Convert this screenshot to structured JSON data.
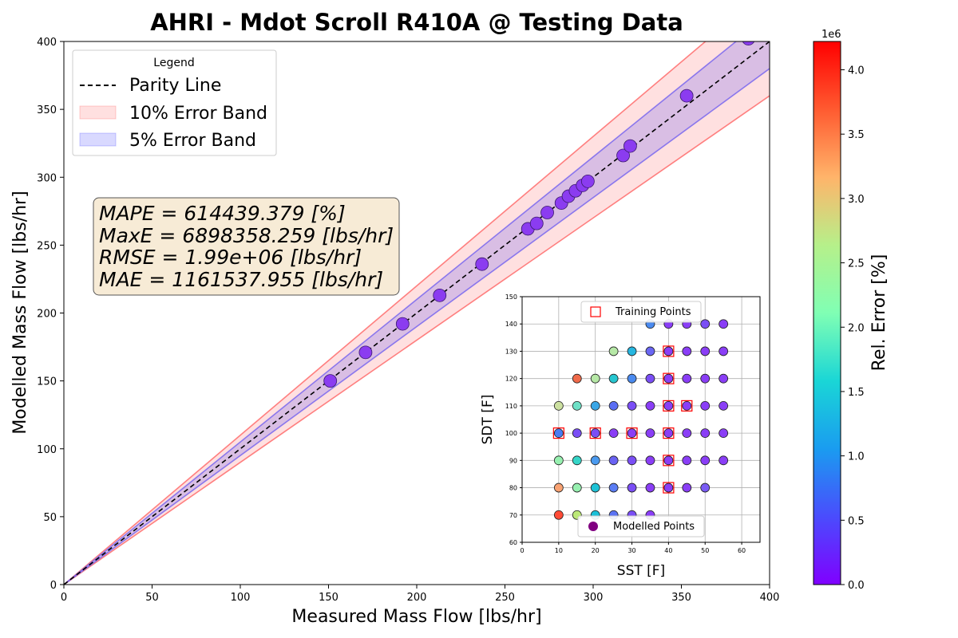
{
  "chart_data": [
    {
      "type": "scatter",
      "title": "AHRI - Mdot Scroll R410A @ Testing Data",
      "xlabel": "Measured Mass Flow [lbs/hr]",
      "ylabel": "Modelled Mass Flow [lbs/hr]",
      "xlim": [
        0,
        400
      ],
      "ylim": [
        0,
        400
      ],
      "xticks": [
        0,
        50,
        100,
        150,
        200,
        250,
        300,
        350,
        400
      ],
      "yticks": [
        0,
        50,
        100,
        150,
        200,
        250,
        300,
        350,
        400
      ],
      "grid": false,
      "legend": {
        "title": "Legend",
        "position": "top-left",
        "entries": [
          "Parity Line",
          "10% Error Band",
          "5% Error Band"
        ]
      },
      "band_colors": {
        "ten": "#ff0000",
        "five": "#0000ff"
      },
      "stats": [
        "MAPE = 614439.379 [%]",
        "MaxE = 6898358.259 [lbs/hr]",
        "RMSE = 1.99e+06 [lbs/hr]",
        "MAE = 1161537.955 [lbs/hr]"
      ],
      "points": [
        [
          151,
          150
        ],
        [
          171,
          171
        ],
        [
          192,
          192
        ],
        [
          213,
          213
        ],
        [
          237,
          236
        ],
        [
          263,
          262
        ],
        [
          268,
          266
        ],
        [
          274,
          274
        ],
        [
          282,
          281
        ],
        [
          286,
          286
        ],
        [
          290,
          290
        ],
        [
          294,
          294
        ],
        [
          297,
          297
        ],
        [
          317,
          316
        ],
        [
          321,
          323
        ],
        [
          353,
          360
        ],
        [
          388,
          402
        ]
      ],
      "point_color": "#8b3cf0"
    },
    {
      "type": "scatter",
      "xlabel": "SST [F]",
      "ylabel": "SDT [F]",
      "xlim": [
        0,
        65
      ],
      "ylim": [
        60,
        150
      ],
      "xticks": [
        0,
        10,
        20,
        30,
        40,
        50,
        60
      ],
      "yticks": [
        60,
        70,
        80,
        90,
        100,
        110,
        120,
        130,
        140,
        150
      ],
      "grid": true,
      "legend_top": "Training Points",
      "legend_bottom": "Modelled Points",
      "training_color": "#ff0000",
      "modelled_color": "#800080",
      "modelled_points": [
        [
          10,
          70,
          "#ff4b36"
        ],
        [
          15,
          70,
          "#bce878"
        ],
        [
          20,
          70,
          "#18c0d8"
        ],
        [
          25,
          70,
          "#5a72f3"
        ],
        [
          30,
          70,
          "#7a4ef5"
        ],
        [
          35,
          70,
          "#8a3ef6"
        ],
        [
          10,
          80,
          "#f9a272"
        ],
        [
          15,
          80,
          "#97f0b0"
        ],
        [
          20,
          80,
          "#1ec2d6"
        ],
        [
          25,
          80,
          "#5a7cf3"
        ],
        [
          30,
          80,
          "#7a4ef5"
        ],
        [
          35,
          80,
          "#8a3ef6"
        ],
        [
          40,
          80,
          "#8a3ef6"
        ],
        [
          45,
          80,
          "#8a3ef6"
        ],
        [
          50,
          80,
          "#7a5cf5"
        ],
        [
          10,
          90,
          "#97f0b0"
        ],
        [
          15,
          90,
          "#36d6c8"
        ],
        [
          20,
          90,
          "#4a9aef"
        ],
        [
          25,
          90,
          "#6a62f3"
        ],
        [
          30,
          90,
          "#7a4ef5"
        ],
        [
          35,
          90,
          "#8a3ef6"
        ],
        [
          40,
          90,
          "#8a3ef6"
        ],
        [
          45,
          90,
          "#8a3ef6"
        ],
        [
          50,
          90,
          "#8a3ef6"
        ],
        [
          55,
          90,
          "#8a3ef6"
        ],
        [
          10,
          100,
          "#4a7cf3"
        ],
        [
          15,
          100,
          "#7a4ef5"
        ],
        [
          20,
          100,
          "#7a4ef5"
        ],
        [
          25,
          100,
          "#8a3ef6"
        ],
        [
          30,
          100,
          "#8a3ef6"
        ],
        [
          35,
          100,
          "#8a3ef6"
        ],
        [
          40,
          100,
          "#8a3ef6"
        ],
        [
          45,
          100,
          "#8a3ef6"
        ],
        [
          50,
          100,
          "#8a3ef6"
        ],
        [
          55,
          100,
          "#8a3ef6"
        ],
        [
          10,
          110,
          "#cce0a0"
        ],
        [
          15,
          110,
          "#6ee0c6"
        ],
        [
          20,
          110,
          "#3aa6e6"
        ],
        [
          25,
          110,
          "#5a6ef3"
        ],
        [
          30,
          110,
          "#7a4ef5"
        ],
        [
          35,
          110,
          "#8a3ef6"
        ],
        [
          40,
          110,
          "#8a3ef6"
        ],
        [
          45,
          110,
          "#8a3ef6"
        ],
        [
          50,
          110,
          "#8a3ef6"
        ],
        [
          55,
          110,
          "#8a3ef6"
        ],
        [
          15,
          120,
          "#f06a4a"
        ],
        [
          20,
          120,
          "#b6e8a6"
        ],
        [
          25,
          120,
          "#26c6d0"
        ],
        [
          30,
          120,
          "#4a8aef"
        ],
        [
          35,
          120,
          "#7a4ef5"
        ],
        [
          40,
          120,
          "#8a3ef6"
        ],
        [
          45,
          120,
          "#8a3ef6"
        ],
        [
          50,
          120,
          "#8a3ef6"
        ],
        [
          55,
          120,
          "#8a3ef6"
        ],
        [
          25,
          130,
          "#b6e8a6"
        ],
        [
          30,
          130,
          "#26b6e0"
        ],
        [
          35,
          130,
          "#6a66f3"
        ],
        [
          40,
          130,
          "#8a3ef6"
        ],
        [
          45,
          130,
          "#8a3ef6"
        ],
        [
          50,
          130,
          "#8a3ef6"
        ],
        [
          55,
          130,
          "#8a3ef6"
        ],
        [
          35,
          140,
          "#4a8aef"
        ],
        [
          40,
          140,
          "#8a3ef6"
        ],
        [
          45,
          140,
          "#8a3ef6"
        ],
        [
          50,
          140,
          "#7a4ef5"
        ],
        [
          55,
          140,
          "#8a3ef6"
        ]
      ],
      "training_points": [
        [
          10,
          100
        ],
        [
          20,
          100
        ],
        [
          30,
          100
        ],
        [
          40,
          100
        ],
        [
          40,
          80
        ],
        [
          40,
          90
        ],
        [
          40,
          110
        ],
        [
          40,
          120
        ],
        [
          40,
          130
        ],
        [
          45,
          110
        ]
      ]
    },
    {
      "type": "heatmap",
      "ylabel": "Rel. Error [%]",
      "multiplier": "1e6",
      "ylim": [
        0,
        4.22
      ],
      "ticks": [
        "0.0",
        "0.5",
        "1.0",
        "1.5",
        "2.0",
        "2.5",
        "3.0",
        "3.5",
        "4.0"
      ],
      "tick_values": [
        0,
        0.5,
        1.0,
        1.5,
        2.0,
        2.5,
        3.0,
        3.5,
        4.0
      ]
    }
  ]
}
